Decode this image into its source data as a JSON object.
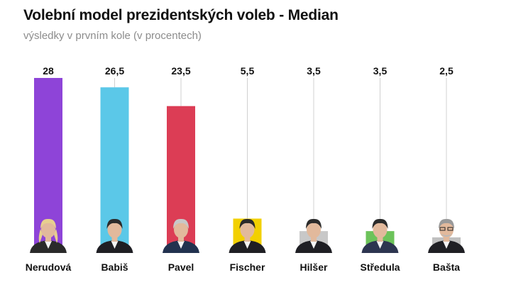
{
  "chart_data": {
    "type": "bar",
    "title": "Volební model prezidentských voleb - Median",
    "subtitle": "výsledky v prvním kole (v procentech)",
    "xlabel": "",
    "ylabel": "",
    "ylim": [
      0,
      30
    ],
    "grid": false,
    "legend": "none",
    "categories": [
      "Nerudová",
      "Babiš",
      "Pavel",
      "Fischer",
      "Hilšer",
      "Středula",
      "Bašta"
    ],
    "values": [
      28,
      26.5,
      23.5,
      5.5,
      3.5,
      3.5,
      2.5
    ],
    "value_labels": [
      "28",
      "26,5",
      "23,5",
      "5,5",
      "3,5",
      "3,5",
      "2,5"
    ],
    "colors": [
      "#8e44d8",
      "#5bc8e8",
      "#dc3d55",
      "#f2d000",
      "#c8c8c8",
      "#6cc35a",
      "#c0c0c0"
    ]
  }
}
